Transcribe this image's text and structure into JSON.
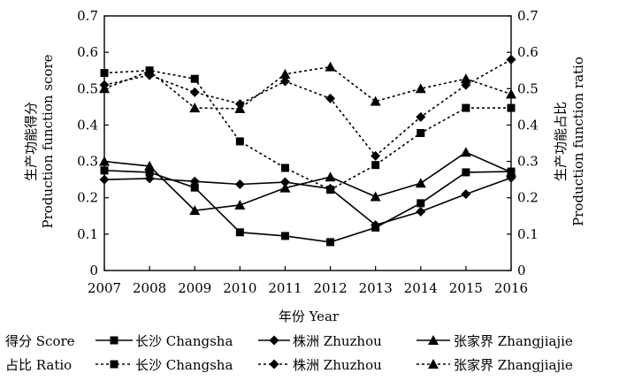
{
  "chart_data": {
    "type": "line",
    "title": "",
    "xlabel": "年份 Year",
    "ylabel_left": "生产功能得分 Production function score",
    "ylabel_right": "生产功能占比 Production function ratio",
    "ylabel_left_lines": [
      "生产功能得分",
      "Production function score"
    ],
    "ylabel_right_lines": [
      "生产功能占比",
      "Production function ratio"
    ],
    "x": [
      2007,
      2008,
      2009,
      2010,
      2011,
      2012,
      2013,
      2014,
      2015,
      2016
    ],
    "ylim": [
      0,
      0.7
    ],
    "yticks": [
      0,
      0.1,
      0.2,
      0.3,
      0.4,
      0.5,
      0.6,
      0.7
    ],
    "yticks_left_labels": [
      "0",
      "0.1",
      "0.2",
      "0.3",
      "0.4",
      "0.5",
      "0.6",
      "0.7"
    ],
    "yticks_right_labels": [
      "0",
      "0.1",
      "0.2",
      "0.3",
      "0.4",
      "0.5",
      "0.6",
      "0.7"
    ],
    "grid": false,
    "legend_placement": "bottom",
    "series": [
      {
        "group": "Score",
        "city": "Changsha",
        "marker": "square",
        "dash": "solid",
        "values": [
          0.275,
          0.27,
          0.228,
          0.105,
          0.095,
          0.078,
          0.118,
          0.185,
          0.27,
          0.272
        ]
      },
      {
        "group": "Score",
        "city": "Zhuzhou",
        "marker": "diamond",
        "dash": "solid",
        "values": [
          0.25,
          0.253,
          0.245,
          0.237,
          0.243,
          0.225,
          0.125,
          0.162,
          0.21,
          0.255
        ]
      },
      {
        "group": "Score",
        "city": "Zhangjiajie",
        "marker": "triangle",
        "dash": "solid",
        "values": [
          0.3,
          0.287,
          0.165,
          0.18,
          0.227,
          0.257,
          0.203,
          0.24,
          0.325,
          0.27
        ]
      },
      {
        "group": "Ratio",
        "city": "Changsha",
        "marker": "square",
        "dash": "dotted",
        "values": [
          0.543,
          0.55,
          0.527,
          0.355,
          0.282,
          0.222,
          0.29,
          0.378,
          0.447,
          0.447
        ]
      },
      {
        "group": "Ratio",
        "city": "Zhuzhou",
        "marker": "diamond",
        "dash": "dotted",
        "values": [
          0.51,
          0.537,
          0.49,
          0.458,
          0.52,
          0.473,
          0.315,
          0.422,
          0.51,
          0.58
        ]
      },
      {
        "group": "Ratio",
        "city": "Zhangjiajie",
        "marker": "triangle",
        "dash": "dotted",
        "values": [
          0.5,
          0.548,
          0.447,
          0.445,
          0.54,
          0.56,
          0.465,
          0.5,
          0.527,
          0.485
        ]
      }
    ],
    "legend": [
      {
        "group_label": "得分 Score",
        "entries": [
          "长沙 Changsha",
          "株洲 Zhuzhou",
          "张家界 Zhangjiajie"
        ]
      },
      {
        "group_label": "占比 Ratio",
        "entries": [
          "长沙 Changsha",
          "株洲 Zhuzhou",
          "张家界 Zhangjiajie"
        ]
      }
    ]
  }
}
